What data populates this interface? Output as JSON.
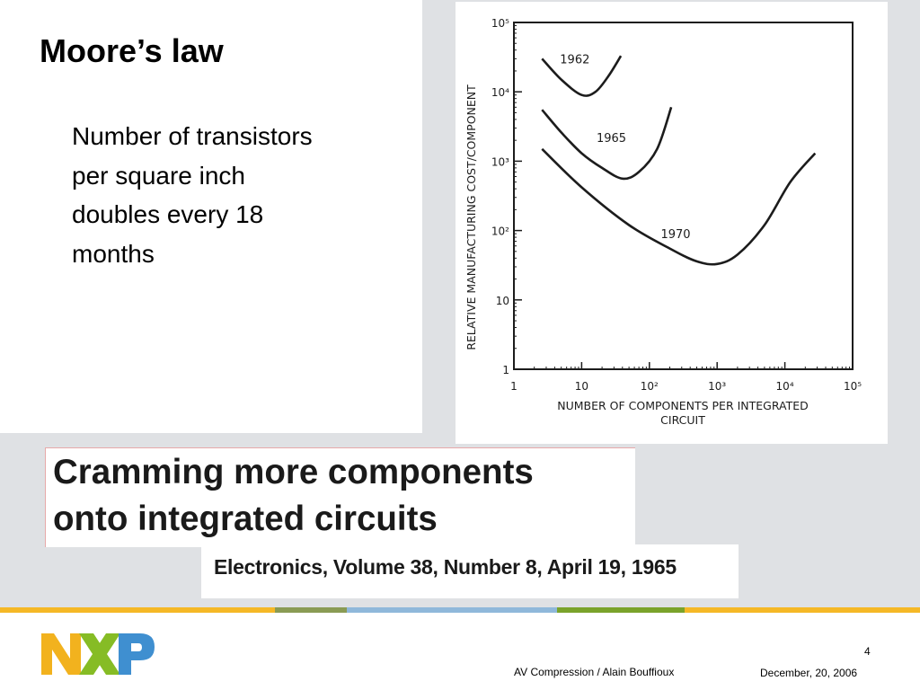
{
  "slide": {
    "title": "Moore’s law",
    "body": "Number of transistors per square inch doubles every 18 months",
    "page_number": "4",
    "footer_left": "AV Compression / Alain Bouffioux",
    "footer_right": "December, 20, 2006"
  },
  "banner": {
    "line1": "Cramming more components",
    "line2": "onto integrated circuits",
    "citation": "Electronics, Volume 38, Number 8, April 19, 1965"
  },
  "logo": {
    "icon": "nxp-logo",
    "colors": [
      "#f2b21e",
      "#86bc25",
      "#3f8fd0"
    ]
  },
  "footer_stripe_colors": [
    "#f5b826",
    "#8a9b54",
    "#8fb8da",
    "#7aa32b",
    "#f5b826"
  ],
  "chart_data": {
    "type": "line",
    "x_scale": "log",
    "y_scale": "log",
    "xlim": [
      1,
      100000
    ],
    "ylim": [
      1,
      100000
    ],
    "xlabel": "NUMBER OF COMPONENTS PER INTEGRATED CIRCUIT",
    "ylabel": "RELATIVE MANUFACTURING COST/COMPONENT",
    "x_ticks": [
      "1",
      "10",
      "10²",
      "10³",
      "10⁴",
      "10⁵"
    ],
    "y_ticks": [
      "1",
      "10",
      "10²",
      "10³",
      "10⁴",
      "10⁵"
    ],
    "series": [
      {
        "name": "1962",
        "points": [
          [
            2.6,
            30000
          ],
          [
            5,
            15000
          ],
          [
            10,
            9000
          ],
          [
            16,
            10000
          ],
          [
            25,
            17000
          ],
          [
            38,
            33000
          ]
        ]
      },
      {
        "name": "1965",
        "points": [
          [
            2.6,
            5500
          ],
          [
            5,
            2600
          ],
          [
            10,
            1300
          ],
          [
            20,
            800
          ],
          [
            40,
            560
          ],
          [
            70,
            700
          ],
          [
            130,
            1500
          ],
          [
            210,
            6000
          ]
        ]
      },
      {
        "name": "1970",
        "points": [
          [
            2.6,
            1500
          ],
          [
            10,
            420
          ],
          [
            50,
            120
          ],
          [
            200,
            55
          ],
          [
            500,
            36
          ],
          [
            1000,
            33
          ],
          [
            2000,
            45
          ],
          [
            5000,
            120
          ],
          [
            12000,
            500
          ],
          [
            28000,
            1300
          ]
        ]
      }
    ]
  }
}
